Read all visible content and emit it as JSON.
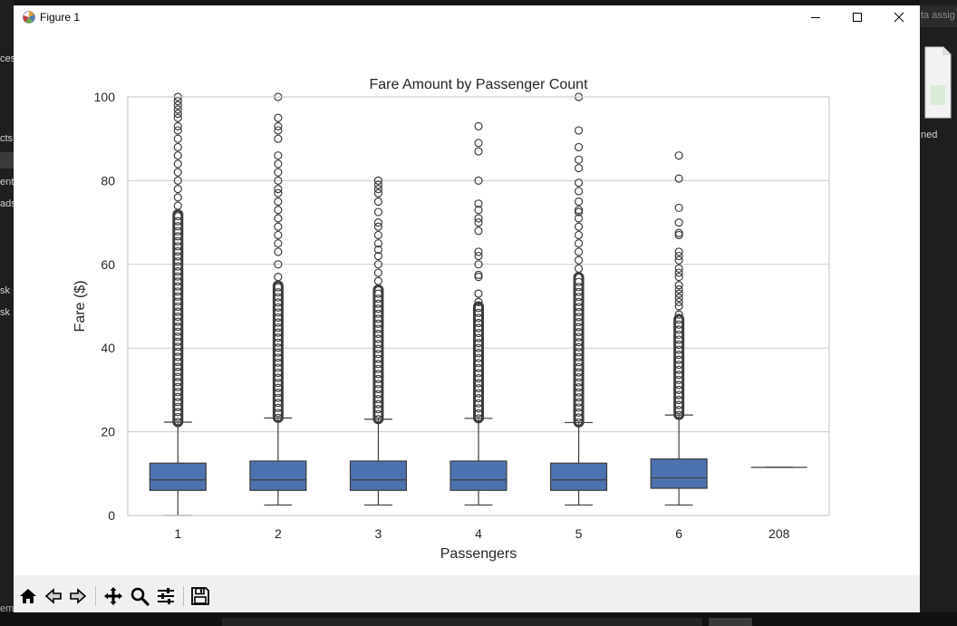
{
  "window": {
    "title": "Figure 1"
  },
  "background": {
    "left_fragments": [
      "cess",
      "cts",
      "ent",
      "ads",
      "sk",
      "sk"
    ],
    "right_search_fragment": "ta assig",
    "right_file_label": "ned",
    "bottom_fragment": "em"
  },
  "toolbar": {
    "icons": [
      "home-icon",
      "back-icon",
      "forward-icon",
      "pan-icon",
      "zoom-icon",
      "configure-subplots-icon",
      "save-icon"
    ]
  },
  "colors": {
    "box_fill": "#4c72b0",
    "line": "#3d3d3d",
    "grid": "#cccccc",
    "axes_edge": "#cccccc"
  },
  "chart_data": {
    "type": "box",
    "title": "Fare Amount by Passenger Count",
    "xlabel": "Passengers",
    "ylabel": "Fare ($)",
    "ylim": [
      0,
      100
    ],
    "yticks": [
      "0",
      "20",
      "40",
      "60",
      "80",
      "100"
    ],
    "grid": "horizontal",
    "categories": [
      "1",
      "2",
      "3",
      "4",
      "5",
      "6",
      "208"
    ],
    "boxes": [
      {
        "category": "1",
        "whisker_low": 0,
        "q1": 6.0,
        "median": 8.5,
        "q3": 12.5,
        "whisker_high": 22.3,
        "fliers_dense_from": 22.3,
        "fliers_dense_to": 72,
        "fliers": [
          74,
          76,
          78,
          80,
          82,
          84,
          86,
          88,
          90,
          92,
          93,
          95,
          96,
          97,
          98,
          99,
          100
        ]
      },
      {
        "category": "2",
        "whisker_low": 2.5,
        "q1": 6.0,
        "median": 8.5,
        "q3": 13.0,
        "whisker_high": 23.3,
        "fliers_dense_from": 23.3,
        "fliers_dense_to": 55,
        "fliers": [
          57,
          60,
          63,
          65,
          67,
          69,
          71,
          73,
          75,
          77,
          78,
          80,
          82,
          84,
          86,
          90,
          92,
          93,
          95,
          100
        ]
      },
      {
        "category": "3",
        "whisker_low": 2.5,
        "q1": 6.0,
        "median": 8.5,
        "q3": 13.0,
        "whisker_high": 23.0,
        "fliers_dense_from": 23.0,
        "fliers_dense_to": 54,
        "fliers": [
          56,
          58,
          60,
          62,
          63.5,
          65,
          67,
          69,
          70,
          72.5,
          75,
          77,
          78,
          79,
          80
        ]
      },
      {
        "category": "4",
        "whisker_low": 2.5,
        "q1": 6.0,
        "median": 8.5,
        "q3": 13.0,
        "whisker_high": 23.2,
        "fliers_dense_from": 23.2,
        "fliers_dense_to": 50,
        "fliers": [
          51,
          53,
          57,
          57.5,
          60,
          62,
          63,
          68,
          70,
          71,
          73,
          74.5,
          80,
          87,
          89,
          93
        ]
      },
      {
        "category": "5",
        "whisker_low": 2.5,
        "q1": 6.0,
        "median": 8.5,
        "q3": 12.5,
        "whisker_high": 22.2,
        "fliers_dense_from": 22.2,
        "fliers_dense_to": 57,
        "fliers": [
          59,
          61,
          63,
          65,
          67,
          69,
          71,
          72.5,
          73,
          75,
          77.5,
          79.5,
          83,
          85,
          88,
          92,
          100
        ]
      },
      {
        "category": "6",
        "whisker_low": 2.5,
        "q1": 6.5,
        "median": 9.0,
        "q3": 13.5,
        "whisker_high": 24.0,
        "fliers_dense_from": 24.0,
        "fliers_dense_to": 47,
        "fliers": [
          48,
          50,
          51,
          52,
          53,
          54,
          55,
          57,
          58,
          59,
          61,
          62,
          63,
          67,
          67.5,
          70,
          73.5,
          80.5,
          86
        ]
      },
      {
        "category": "208",
        "whisker_low": 11.5,
        "q1": 11.5,
        "median": 11.5,
        "q3": 11.5,
        "whisker_high": 11.5,
        "fliers_dense_from": null,
        "fliers_dense_to": null,
        "fliers": []
      }
    ]
  }
}
